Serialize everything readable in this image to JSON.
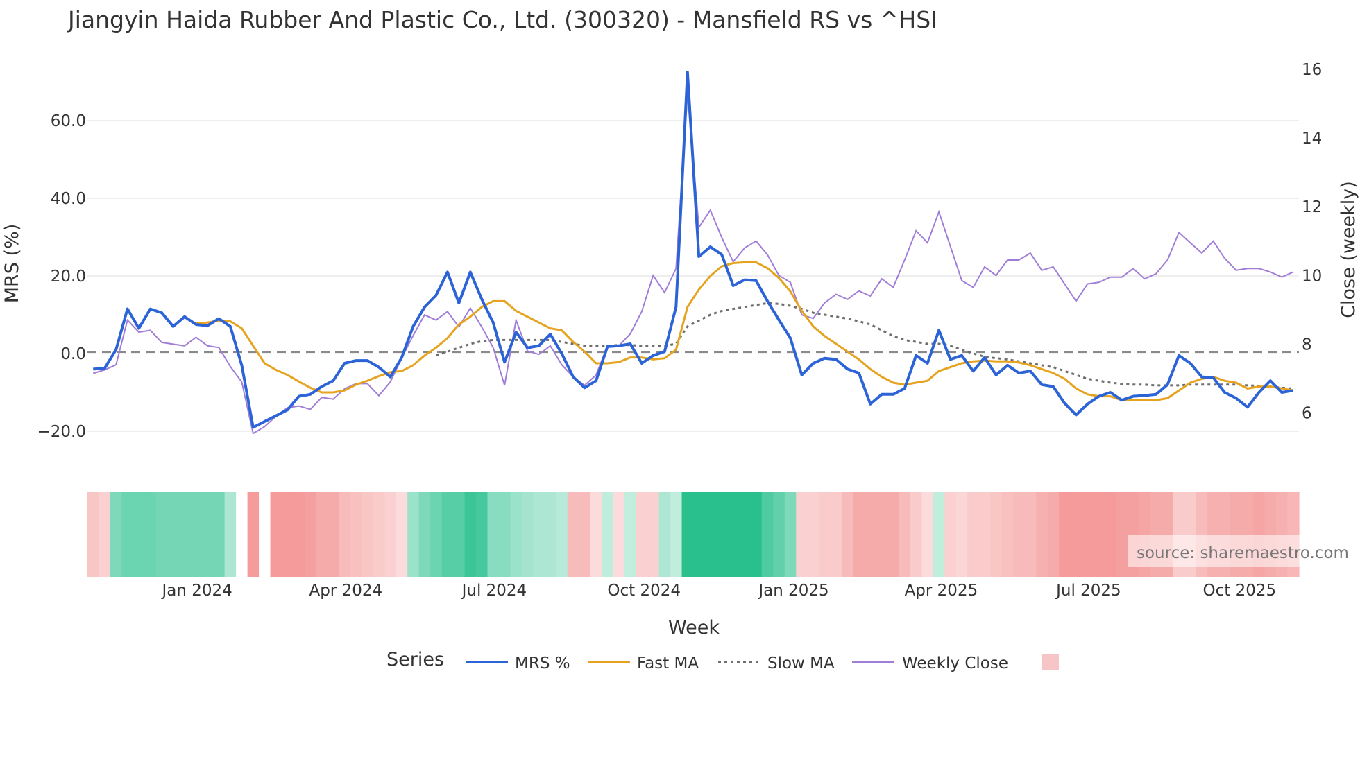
{
  "chart_data": {
    "type": "line",
    "title": "Jiangyin Haida Rubber And Plastic Co., Ltd. (300320) - Mansfield RS vs ^HSI",
    "xlabel": "Week",
    "ylabel": "MRS (%)",
    "y2label": "Close (weekly)",
    "ylim": [
      -25,
      75
    ],
    "y2lim": [
      4.9,
      16.2
    ],
    "yticks": [
      "60.0",
      "40.0",
      "20.0",
      "0.0",
      "−20.0"
    ],
    "ytick_values": [
      60,
      40,
      20,
      0,
      -20
    ],
    "y2ticks": [
      "16",
      "14",
      "12",
      "10",
      "8",
      "6"
    ],
    "y2tick_values": [
      16,
      14,
      12,
      10,
      8,
      6
    ],
    "xticks": [
      "Jan 2024",
      "Apr 2024",
      "Jul 2024",
      "Oct 2024",
      "Jan 2025",
      "Apr 2025",
      "Jul 2025",
      "Oct 2025"
    ],
    "xtick_weeks": [
      9.6,
      22.6,
      35.6,
      48.7,
      61.8,
      74.7,
      87.6,
      100.8
    ],
    "n_weeks": 106,
    "legend_title": "Series",
    "legend": [
      "MRS %",
      "Fast MA",
      "Slow MA",
      "Weekly Close",
      ""
    ],
    "source": "source: sharemaestro.com",
    "colors": {
      "mrs": "#2c63d6",
      "fast": "#e5a31f",
      "slow": "#6e6e6e",
      "close": "#a07ed8",
      "zero": "#8a8a8a",
      "grid": "#e8e8e8",
      "legend_swatch": "#f7c5c5"
    },
    "series": [
      {
        "name": "MRS %",
        "values": [
          -4,
          -3.8,
          1,
          11.5,
          6.5,
          11.5,
          10.5,
          7,
          9.5,
          7.5,
          7.2,
          9,
          7,
          -3,
          -19,
          -17.5,
          -16,
          -14.5,
          -11,
          -10.5,
          -8.5,
          -7,
          -2.5,
          -1.8,
          -1.8,
          -3.5,
          -6,
          -1,
          7,
          12,
          15,
          21,
          13,
          21,
          14,
          8,
          -2.2,
          5.5,
          1.5,
          2,
          5,
          0,
          -6,
          -8.8,
          -7,
          1.8,
          2,
          2.5,
          -2.5,
          -0.5,
          0.5,
          12,
          72.5,
          25,
          27.5,
          25.5,
          17.5,
          19,
          18.8,
          13.5,
          8.7,
          4,
          -5.5,
          -2.5,
          -1.2,
          -1.5,
          -4,
          -5,
          -13,
          -10.5,
          -10.5,
          -9,
          -0.5,
          -2.5,
          6,
          -1.5,
          -0.5,
          -4.5,
          -1,
          -5.5,
          -3,
          -5,
          -4.5,
          -8,
          -8.5,
          -12.8,
          -15.8,
          -13,
          -11,
          -10,
          -12,
          -11,
          -10.8,
          -10.5,
          -8,
          -0.5,
          -2.5,
          -6,
          -6.2,
          -10,
          -11.5,
          -13.8,
          -10,
          -7,
          -10,
          -9.5
        ]
      },
      {
        "name": "Fast MA",
        "values": [
          null,
          null,
          null,
          null,
          null,
          null,
          null,
          null,
          null,
          7.8,
          8.0,
          8.5,
          8.3,
          6.5,
          2.0,
          -2.5,
          -4.2,
          -5.5,
          -7.2,
          -8.8,
          -10.0,
          -10.0,
          -9.5,
          -8.0,
          -7.0,
          -5.8,
          -4.8,
          -4.5,
          -3.0,
          -0.5,
          1.5,
          4.0,
          7.5,
          9.5,
          12.0,
          13.5,
          13.5,
          11.0,
          9.5,
          8.0,
          6.5,
          6.0,
          3.0,
          0.5,
          -2.5,
          -2.5,
          -2.2,
          -1.0,
          -1.0,
          -1.5,
          -1.2,
          1.0,
          12.0,
          16.5,
          20.0,
          22.5,
          23.3,
          23.5,
          23.5,
          22.0,
          19.5,
          16.0,
          11.0,
          7.0,
          4.5,
          2.5,
          0.5,
          -1.5,
          -4.0,
          -6.0,
          -7.5,
          -8.0,
          -7.5,
          -7.0,
          -4.5,
          -3.5,
          -2.5,
          -2.0,
          -1.8,
          -2.0,
          -2.0,
          -2.3,
          -3.0,
          -4.0,
          -5.0,
          -6.5,
          -9.0,
          -10.5,
          -11.0,
          -11.0,
          -12.0,
          -12.0,
          -12.0,
          -12.0,
          -11.5,
          -9.5,
          -7.5,
          -6.5,
          -6.0,
          -7.0,
          -7.5,
          -9.0,
          -8.5,
          -8.5,
          -9.0,
          -9.5
        ]
      },
      {
        "name": "Slow MA",
        "values": [
          null,
          null,
          null,
          null,
          null,
          null,
          null,
          null,
          null,
          null,
          null,
          null,
          null,
          null,
          null,
          null,
          null,
          null,
          null,
          null,
          null,
          null,
          null,
          null,
          null,
          null,
          null,
          null,
          null,
          null,
          -0.5,
          0.5,
          1.5,
          2.5,
          3.2,
          3.5,
          3.5,
          3.5,
          3.5,
          3.5,
          3.5,
          3.0,
          2.5,
          2.0,
          2.0,
          2.0,
          2.2,
          2.2,
          2.0,
          2.0,
          2.0,
          2.5,
          7.0,
          8.5,
          10.0,
          11.0,
          11.5,
          12.0,
          12.5,
          13.0,
          12.8,
          12.3,
          11.5,
          10.5,
          10.0,
          9.5,
          9.0,
          8.3,
          7.5,
          6.0,
          4.5,
          3.5,
          3.0,
          2.5,
          2.5,
          2.0,
          1.0,
          0.0,
          -0.8,
          -1.2,
          -1.5,
          -2.0,
          -2.5,
          -3.0,
          -3.5,
          -4.5,
          -5.5,
          -6.5,
          -7.0,
          -7.5,
          -7.8,
          -8.0,
          -8.0,
          -8.2,
          -8.2,
          -8.2,
          -8.0,
          -8.0,
          -8.0,
          -8.0,
          -8.0,
          -8.2,
          -8.3,
          -8.5,
          -8.8,
          -9.0
        ]
      },
      {
        "name": "Weekly Close",
        "axis": "right",
        "values": [
          7.15,
          7.25,
          7.4,
          8.7,
          8.35,
          8.4,
          8.05,
          8.0,
          7.95,
          8.2,
          7.95,
          7.9,
          7.35,
          6.9,
          5.4,
          5.6,
          5.9,
          6.15,
          6.2,
          6.1,
          6.45,
          6.4,
          6.7,
          6.85,
          6.85,
          6.5,
          6.9,
          7.6,
          8.25,
          8.85,
          8.7,
          8.95,
          8.5,
          9.05,
          8.5,
          7.9,
          6.8,
          8.7,
          7.8,
          7.7,
          7.95,
          7.4,
          7.05,
          6.8,
          7.1,
          7.95,
          7.95,
          8.3,
          8.95,
          10.0,
          9.5,
          10.2,
          15.3,
          11.4,
          11.9,
          11.1,
          10.4,
          10.8,
          11.0,
          10.6,
          10.0,
          9.8,
          8.85,
          8.75,
          9.2,
          9.45,
          9.3,
          9.55,
          9.4,
          9.9,
          9.65,
          10.45,
          11.3,
          10.95,
          11.85,
          10.85,
          9.85,
          9.65,
          10.25,
          10.0,
          10.45,
          10.45,
          10.65,
          10.15,
          10.25,
          9.75,
          9.25,
          9.75,
          9.8,
          9.95,
          9.95,
          10.2,
          9.9,
          10.05,
          10.45,
          11.25,
          10.95,
          10.65,
          11.0,
          10.5,
          10.15,
          10.2,
          10.2,
          10.1,
          9.95,
          10.1
        ]
      }
    ],
    "regime_strip": {
      "values": [
        0.35,
        0.25,
        0.55,
        0.65,
        0.65,
        0.65,
        0.6,
        0.6,
        0.6,
        0.6,
        0.6,
        0.6,
        0.3,
        0.0,
        0.75,
        0.0,
        0.75,
        0.75,
        0.75,
        0.7,
        0.6,
        0.6,
        0.45,
        0.4,
        0.35,
        0.3,
        0.25,
        0.15,
        0.4,
        0.55,
        0.65,
        0.75,
        0.75,
        0.9,
        0.85,
        0.5,
        0.5,
        0.4,
        0.35,
        0.3,
        0.3,
        0.25,
        0.45,
        0.45,
        0.15,
        0.2,
        0.15,
        0.2,
        0.25,
        0.25,
        0.3,
        0.2,
        1,
        1,
        1,
        1,
        1,
        1,
        1,
        0.8,
        0.7,
        0.55,
        0.25,
        0.25,
        0.3,
        0.3,
        0.45,
        0.6,
        0.6,
        0.6,
        0.6,
        0.45,
        0.3,
        0.15,
        0.2,
        0.25,
        0.2,
        0.3,
        0.3,
        0.35,
        0.4,
        0.45,
        0.45,
        0.55,
        0.6,
        0.75,
        0.75,
        0.75,
        0.75,
        0.75,
        0.7,
        0.7,
        0.65,
        0.6,
        0.6,
        0.3,
        0.3,
        0.45,
        0.55,
        0.55,
        0.6,
        0.6,
        0.65,
        0.6,
        0.55,
        0.5
      ],
      "sign": [
        -1,
        -1,
        1,
        1,
        1,
        1,
        1,
        1,
        1,
        1,
        1,
        1,
        1,
        0,
        -1,
        0,
        -1,
        -1,
        -1,
        -1,
        -1,
        -1,
        -1,
        -1,
        -1,
        -1,
        -1,
        -1,
        1,
        1,
        1,
        1,
        1,
        1,
        1,
        1,
        1,
        1,
        1,
        1,
        1,
        1,
        -1,
        -1,
        -1,
        1,
        -1,
        1,
        -1,
        -1,
        1,
        1,
        1,
        1,
        1,
        1,
        1,
        1,
        1,
        1,
        1,
        1,
        -1,
        -1,
        -1,
        -1,
        -1,
        -1,
        -1,
        -1,
        -1,
        -1,
        -1,
        -1,
        1,
        -1,
        -1,
        -1,
        -1,
        -1,
        -1,
        -1,
        -1,
        -1,
        -1,
        -1,
        -1,
        -1,
        -1,
        -1,
        -1,
        -1,
        -1,
        -1,
        -1,
        -1,
        -1,
        -1,
        -1,
        -1,
        -1,
        -1,
        -1,
        -1,
        -1,
        -1
      ]
    }
  }
}
